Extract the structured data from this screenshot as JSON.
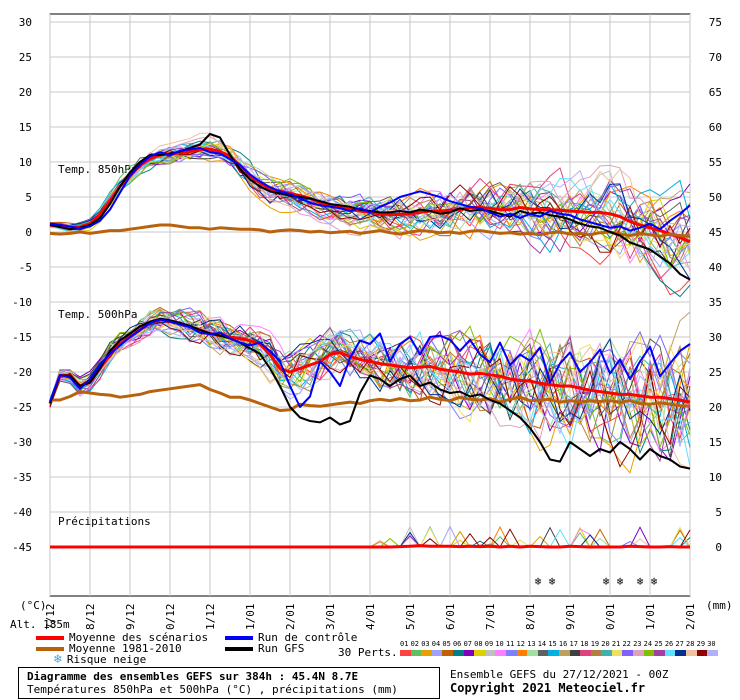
{
  "chart_data": {
    "type": "line",
    "title": "Diagramme des ensembles GEFS sur 384h : 45.4N 8.7E",
    "subtitle": "Températures 850hPa et 500hPa (°C) , précipitations (mm)",
    "left_axis": {
      "label": "(°C)",
      "ticks": [
        30,
        25,
        20,
        15,
        10,
        5,
        0,
        -5,
        -10,
        -15,
        -20,
        -25,
        -30,
        -35,
        -40,
        -45
      ],
      "range": [
        -45,
        30
      ]
    },
    "right_axis": {
      "label": "(mm)",
      "ticks": [
        75,
        70,
        65,
        60,
        55,
        50,
        45,
        40,
        35,
        30,
        25,
        20,
        15,
        10,
        5,
        0
      ],
      "range": [
        0,
        75
      ]
    },
    "x_labels": [
      "27/12",
      "28/12",
      "29/12",
      "30/12",
      "31/12",
      "01/01",
      "02/01",
      "03/01",
      "04/01",
      "05/01",
      "06/01",
      "07/01",
      "08/01",
      "09/01",
      "10/01",
      "11/01",
      "12/01"
    ],
    "panel_labels": {
      "t850": "Temp. 850hPa",
      "t500": "Temp. 500hPa",
      "precip": "Précipitations"
    },
    "x_steps": [
      0,
      0.25,
      0.5,
      0.75,
      1,
      1.25,
      1.5,
      1.75,
      2,
      2.25,
      2.5,
      2.75,
      3,
      3.25,
      3.5,
      3.75,
      4,
      4.25,
      4.5,
      4.75,
      5,
      5.25,
      5.5,
      5.75,
      6,
      6.25,
      6.5,
      6.75,
      7,
      7.25,
      7.5,
      7.75,
      8,
      8.25,
      8.5,
      8.75,
      9,
      9.25,
      9.5,
      9.75,
      10,
      10.25,
      10.5,
      10.75,
      11,
      11.25,
      11.5,
      11.75,
      12,
      12.25,
      12.5,
      12.75,
      13,
      13.25,
      13.5,
      13.75,
      14,
      14.25,
      14.5,
      14.75,
      15,
      15.25,
      15.5,
      15.75,
      16
    ],
    "series": [
      {
        "name": "Moyenne des scénarios 850hPa",
        "color": "#ff0000",
        "width": 3,
        "values": [
          1,
          0.8,
          0.6,
          0.7,
          1.2,
          2.5,
          4.5,
          6.5,
          8,
          9.5,
          10.5,
          11,
          11.2,
          11.3,
          11.5,
          11.8,
          11.8,
          11.5,
          10.8,
          9.5,
          8,
          7,
          6.2,
          5.8,
          5.5,
          5.2,
          4.8,
          4.2,
          3.8,
          3.5,
          3.2,
          3,
          2.8,
          2.6,
          2.5,
          2.5,
          2.6,
          2.8,
          3,
          3,
          3.1,
          3.2,
          3.5,
          3.5,
          3.4,
          3.2,
          3.2,
          3.5,
          3.3,
          3.2,
          3.2,
          3.1,
          3,
          2.9,
          2.8,
          2.8,
          2.6,
          2.2,
          1.5,
          1,
          0.6,
          0.2,
          -0.3,
          -0.8,
          -1.4
        ]
      },
      {
        "name": "Moyenne 1981-2010 850hPa",
        "color": "#b8620e",
        "width": 3,
        "values": [
          -0.2,
          -0.3,
          -0.2,
          0,
          -0.2,
          0,
          0.2,
          0.2,
          0.4,
          0.6,
          0.8,
          1,
          1,
          0.8,
          0.6,
          0.6,
          0.4,
          0.6,
          0.5,
          0.4,
          0.4,
          0.3,
          0,
          0.2,
          0.3,
          0.2,
          0,
          0.1,
          -0.1,
          0,
          0.1,
          -0.2,
          0,
          0.2,
          -0.1,
          -0.3,
          0,
          0.2,
          0.1,
          -0.1,
          0,
          -0.2,
          0.1,
          0.2,
          0,
          -0.2,
          -0.1,
          -0.3,
          -0.2,
          -0.4,
          -0.1,
          0,
          -0.3,
          -0.2,
          -0.4,
          -0.1,
          0,
          -0.3,
          -0.5,
          -0.2,
          -0.4,
          -0.6,
          -0.3,
          -0.5,
          -0.6
        ]
      },
      {
        "name": "Moyenne des scénarios 500hPa",
        "color": "#ff0000",
        "width": 3,
        "values": [
          -24.5,
          -20.5,
          -20.5,
          -22,
          -21.5,
          -19.5,
          -17.5,
          -16,
          -15,
          -14,
          -13,
          -12.5,
          -12.8,
          -13,
          -13.5,
          -14,
          -14.5,
          -14.8,
          -15,
          -15.2,
          -15.5,
          -16,
          -17.5,
          -19.5,
          -20,
          -19.5,
          -19,
          -18.5,
          -17.5,
          -17.2,
          -17.8,
          -18.2,
          -18.5,
          -18.8,
          -19,
          -19.2,
          -19.4,
          -19.3,
          -19.2,
          -19.6,
          -19.8,
          -20,
          -20.3,
          -20.2,
          -20.4,
          -20.6,
          -21,
          -21.2,
          -21.3,
          -21.6,
          -21.8,
          -22,
          -22,
          -22.3,
          -22.6,
          -22.8,
          -23,
          -23.2,
          -23.2,
          -23.4,
          -23.6,
          -23.6,
          -23.8,
          -24,
          -24.3
        ]
      },
      {
        "name": "Moyenne 1981-2010 500hPa",
        "color": "#b8620e",
        "width": 3,
        "values": [
          -24,
          -24,
          -23.5,
          -22.8,
          -23,
          -23.2,
          -23.3,
          -23.6,
          -23.4,
          -23.2,
          -22.8,
          -22.6,
          -22.4,
          -22.2,
          -22,
          -21.8,
          -22.5,
          -23,
          -23.6,
          -23.6,
          -24,
          -24.5,
          -25,
          -25.5,
          -25.4,
          -24.6,
          -24.8,
          -24.9,
          -24.7,
          -24.5,
          -24.3,
          -24.5,
          -24.1,
          -23.9,
          -24.1,
          -23.8,
          -24.1,
          -24,
          -23.6,
          -23.9,
          -24.1,
          -23.6,
          -23.9,
          -24,
          -23.8,
          -24.3,
          -23.9,
          -23.6,
          -24.1,
          -24,
          -23.9,
          -24.3,
          -24.1,
          -24.3,
          -24.1,
          -24.2,
          -24.1,
          -24.3,
          -24.1,
          -24.5,
          -24.6,
          -24.4,
          -24.6,
          -24.8,
          -24.9
        ]
      },
      {
        "name": "Run GFS 850hPa",
        "color": "#000000",
        "width": 2,
        "values": [
          1,
          0.7,
          0.4,
          0.6,
          1,
          2,
          4,
          6.5,
          8.5,
          10,
          11,
          11,
          11.2,
          11.5,
          12,
          12.5,
          14,
          13.5,
          11,
          9,
          7.5,
          6.5,
          5.8,
          5.5,
          5.2,
          5,
          4.8,
          4.4,
          4,
          3.8,
          3.6,
          3.2,
          3,
          2.8,
          2.8,
          3,
          2.8,
          3.2,
          3,
          2.6,
          2.8,
          3.4,
          3,
          3.2,
          3,
          2.6,
          2.2,
          3,
          2.6,
          2.8,
          2.4,
          2.2,
          1.8,
          1.2,
          0.8,
          0.6,
          0,
          -0.5,
          -1.5,
          -2,
          -2.5,
          -3.5,
          -4.5,
          -6,
          -6.8
        ]
      },
      {
        "name": "Run de contrôle 850hPa",
        "color": "#0000ff",
        "width": 2,
        "values": [
          1.2,
          1,
          0.8,
          0.5,
          0.8,
          1.6,
          3.2,
          5.6,
          8,
          9.6,
          10.8,
          11.4,
          11,
          11.6,
          11.8,
          12,
          11.4,
          11.2,
          10.4,
          9.6,
          8.2,
          7.2,
          6.4,
          5.8,
          5.4,
          4.8,
          4.2,
          3.8,
          3.6,
          3.4,
          3,
          3.4,
          2.8,
          3.6,
          4.2,
          5,
          5.4,
          5.8,
          5.4,
          5,
          4.4,
          4,
          3.6,
          3.4,
          2.8,
          2.2,
          2.6,
          2,
          2.6,
          2.2,
          3,
          2.6,
          2.4,
          1.8,
          1.4,
          1,
          0.6,
          0.8,
          0.2,
          0.6,
          1.2,
          0.4,
          1.6,
          2.6,
          3.8
        ]
      },
      {
        "name": "Run GFS 500hPa",
        "color": "#000000",
        "width": 2,
        "values": [
          -24.5,
          -20.5,
          -20.5,
          -22,
          -21.5,
          -19.5,
          -17,
          -15.5,
          -14.5,
          -13.5,
          -12.8,
          -12.4,
          -12.6,
          -13,
          -13.4,
          -14,
          -14.5,
          -14.8,
          -15.2,
          -15.8,
          -16.6,
          -17.4,
          -19.5,
          -22,
          -25,
          -26.5,
          -27,
          -27.2,
          -26.5,
          -27.5,
          -27,
          -23,
          -20.5,
          -21,
          -22,
          -21,
          -20.5,
          -22,
          -21.5,
          -22.5,
          -23,
          -22.8,
          -23.5,
          -23.2,
          -24,
          -24.5,
          -25.5,
          -26.5,
          -28,
          -30,
          -32.5,
          -32.8,
          -30,
          -31,
          -32,
          -31,
          -31.5,
          -30,
          -31,
          -32.5,
          -31,
          -32,
          -32.5,
          -33.5,
          -33.8
        ]
      },
      {
        "name": "Run de contrôle 500hPa",
        "color": "#0000ff",
        "width": 2,
        "values": [
          -24.2,
          -20.4,
          -20.8,
          -22.4,
          -21,
          -19,
          -17.4,
          -16.2,
          -15,
          -14,
          -13,
          -12.5,
          -12.8,
          -13.2,
          -13.6,
          -14.4,
          -14.6,
          -14.4,
          -15.2,
          -15.8,
          -16.2,
          -15.8,
          -17,
          -18.5,
          -22,
          -25,
          -23.5,
          -18.5,
          -20,
          -22,
          -18,
          -15.5,
          -16,
          -14.5,
          -18.5,
          -16,
          -15,
          -17.5,
          -15,
          -14.8,
          -15.4,
          -17,
          -15.4,
          -17.5,
          -18.6,
          -15.8,
          -19,
          -17.5,
          -18.4,
          -16.5,
          -21.5,
          -18.8,
          -17.2,
          -20,
          -18.6,
          -16.8,
          -20.2,
          -18.2,
          -21,
          -18.5,
          -16.4,
          -20.6,
          -18.8,
          -17,
          -16
        ]
      },
      {
        "name": "Précipitations moyenne",
        "color": "#ff0000",
        "width": 3,
        "values": [
          0,
          0,
          0,
          0,
          0,
          0,
          0,
          0,
          0,
          0,
          0,
          0,
          0,
          0,
          0,
          0,
          0,
          0,
          0,
          0,
          0,
          0,
          0,
          0,
          0,
          0,
          0,
          0,
          0,
          0,
          0,
          0,
          0,
          0,
          0,
          0.05,
          0.1,
          0.2,
          0.1,
          0.1,
          0.1,
          0.05,
          0.1,
          0.05,
          0.1,
          0,
          0.1,
          0,
          0.1,
          0.05,
          0,
          0,
          0.1,
          0.05,
          0,
          0,
          0,
          0,
          0.1,
          0.05,
          0,
          0,
          0.05,
          0,
          0
        ]
      }
    ],
    "perturbation_count": "30 Perts.",
    "perturbations": [
      {
        "id": "01",
        "color": "#ff4040"
      },
      {
        "id": "02",
        "color": "#60c060"
      },
      {
        "id": "03",
        "color": "#e8a000"
      },
      {
        "id": "04",
        "color": "#a0a0ff"
      },
      {
        "id": "05",
        "color": "#c06000"
      },
      {
        "id": "06",
        "color": "#008080"
      },
      {
        "id": "07",
        "color": "#8000c0"
      },
      {
        "id": "08",
        "color": "#e0d000"
      },
      {
        "id": "09",
        "color": "#c0c0c0"
      },
      {
        "id": "10",
        "color": "#ff80ff"
      },
      {
        "id": "11",
        "color": "#8080ff"
      },
      {
        "id": "12",
        "color": "#ff8000"
      },
      {
        "id": "13",
        "color": "#a0e0a0"
      },
      {
        "id": "14",
        "color": "#606060"
      },
      {
        "id": "15",
        "color": "#00b0e0"
      },
      {
        "id": "16",
        "color": "#c0a060"
      },
      {
        "id": "17",
        "color": "#404040"
      },
      {
        "id": "18",
        "color": "#e04080"
      },
      {
        "id": "19",
        "color": "#b08040"
      },
      {
        "id": "20",
        "color": "#40b0b0"
      },
      {
        "id": "21",
        "color": "#f0e060"
      },
      {
        "id": "22",
        "color": "#8060ff"
      },
      {
        "id": "23",
        "color": "#e0a0c0"
      },
      {
        "id": "24",
        "color": "#80c000"
      },
      {
        "id": "25",
        "color": "#a040a0"
      },
      {
        "id": "26",
        "color": "#60e0ff"
      },
      {
        "id": "27",
        "color": "#003090"
      },
      {
        "id": "28",
        "color": "#f0c0a0"
      },
      {
        "id": "29",
        "color": "#900000"
      },
      {
        "id": "30",
        "color": "#b0b0ff"
      }
    ],
    "snow_risk_days": [
      12.2,
      12.55,
      13.9,
      14.25,
      14.75,
      15.1
    ]
  },
  "legend": {
    "mean_label": "Moyenne des scénarios",
    "climate_label": "Moyenne 1981-2010",
    "snow_label": "Risque neige",
    "control_label": "Run de contrôle",
    "gfs_label": "Run GFS",
    "mean_color": "#ff0000",
    "climate_color": "#b8620e",
    "control_color": "#0000ff",
    "gfs_color": "#000000"
  },
  "altitude": "Alt. 185m",
  "snow_glyph": "❄",
  "info": {
    "line1": "Diagramme des ensembles GEFS sur 384h : 45.4N 8.7E",
    "line2": "Températures 850hPa et 500hPa (°C) , précipitations (mm)",
    "run": "Ensemble GEFS du 27/12/2021 - 00Z",
    "copyright": "Copyright 2021 Meteociel.fr"
  }
}
